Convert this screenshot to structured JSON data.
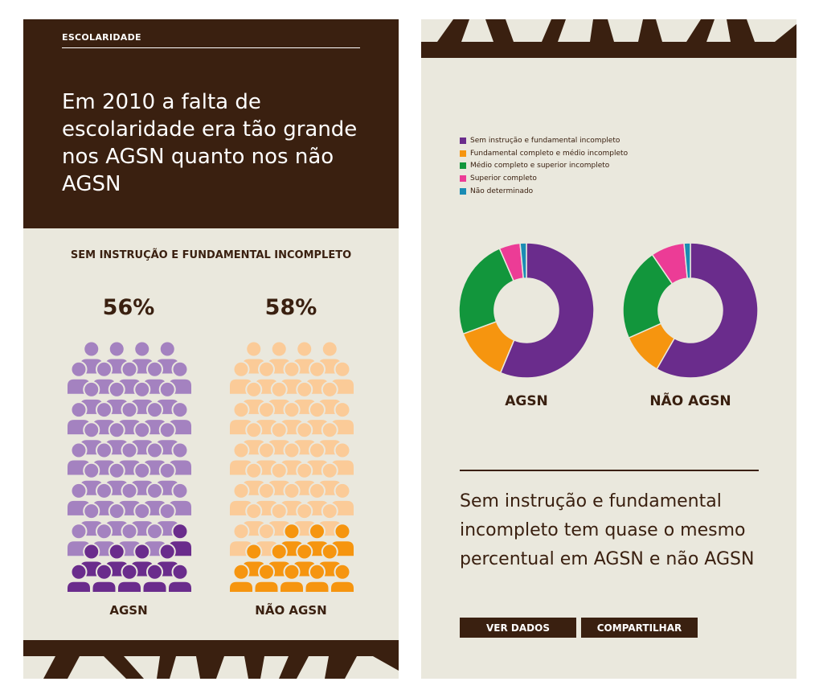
{
  "left": {
    "section_label": "ESCOLARIDADE",
    "headline": "Em 2010 a falta de escolaridade era tão grande nos AGSN quanto nos não AGSN",
    "subtitle": "SEM INSTRUÇÃO E FUNDAMENTAL INCOMPLETO",
    "groups": [
      {
        "label": "AGSN",
        "percent": "56%",
        "value": 56,
        "light_color": "#a482c0",
        "dark_color": "#6a2c8c"
      },
      {
        "label": "NÃO AGSN",
        "percent": "58%",
        "value": 58,
        "light_color": "#fbcb98",
        "dark_color": "#f6950f"
      }
    ]
  },
  "right": {
    "conclusion": "Sem instrução e fundamental incompleto tem quase o mesmo percentual em AGSN e não AGSN",
    "buttons": {
      "ver_dados": "VER DADOS",
      "compartilhar": "COMPARTILHAR"
    }
  },
  "colors": {
    "dark_brown": "#3a2010",
    "background": "#eae8dd"
  },
  "chart_data": [
    {
      "type": "pictogram",
      "title": "SEM INSTRUÇÃO E FUNDAMENTAL INCOMPLETO",
      "categories": [
        "AGSN",
        "NÃO AGSN"
      ],
      "values": [
        56,
        58
      ],
      "labels": [
        "56%",
        "58%"
      ]
    },
    {
      "type": "pie",
      "legend": [
        {
          "label": "Sem instrução e fundamental incompleto",
          "color": "#6a2c8c"
        },
        {
          "label": "Fundamental completo e médio incompleto",
          "color": "#f6950f"
        },
        {
          "label": "Médio completo e superior incompleto",
          "color": "#12963c"
        },
        {
          "label": "Superior completo",
          "color": "#ec3c96"
        },
        {
          "label": "Não determinado",
          "color": "#1a8cb4"
        }
      ],
      "legend_position": "top-left",
      "series": [
        {
          "name": "AGSN",
          "values": [
            56,
            13,
            24,
            5,
            1.5
          ]
        },
        {
          "name": "NÃO AGSN",
          "values": [
            58,
            10,
            22,
            8,
            1.5
          ]
        }
      ]
    }
  ]
}
